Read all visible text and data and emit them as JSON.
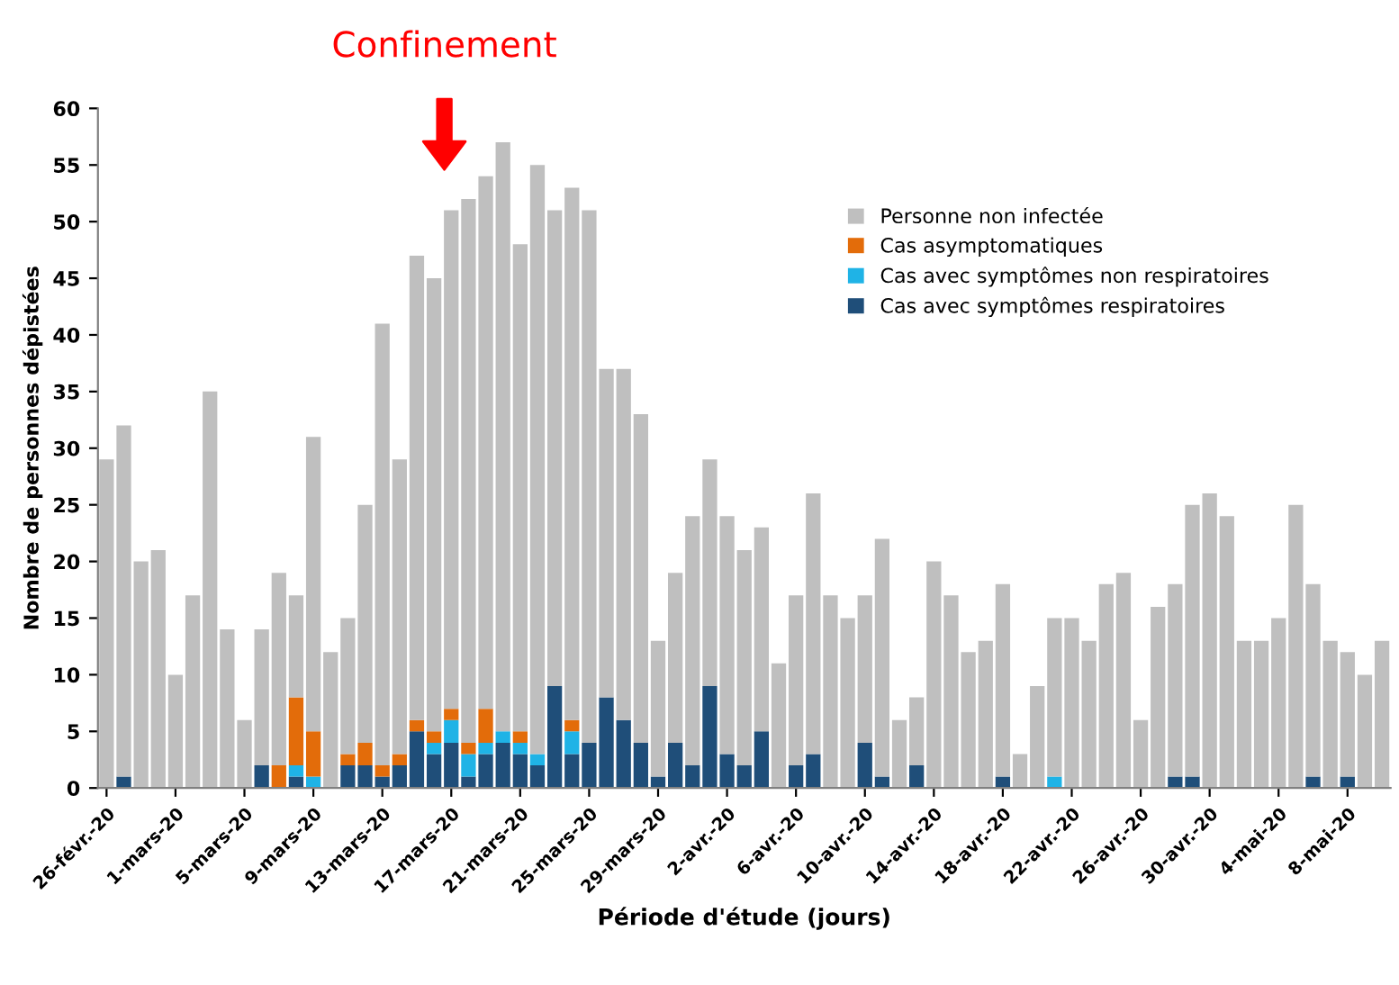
{
  "chart_data": {
    "type": "bar",
    "stacked": true,
    "xlabel": "Période d'étude (jours)",
    "ylabel": "Nombre de personnes dépistées",
    "categories": [
      "26-févr.-20",
      null,
      null,
      null,
      "1-mars-20",
      null,
      null,
      null,
      "5-mars-20",
      null,
      null,
      null,
      "9-mars-20",
      null,
      null,
      null,
      "13-mars-20",
      null,
      null,
      null,
      "17-mars-20",
      null,
      null,
      null,
      "21-mars-20",
      null,
      null,
      null,
      "25-mars-20",
      null,
      null,
      null,
      "29-mars-20",
      null,
      null,
      null,
      "2-avr.-20",
      null,
      null,
      null,
      "6-avr.-20",
      null,
      null,
      null,
      "10-avr.-20",
      null,
      null,
      null,
      "14-avr.-20",
      null,
      null,
      null,
      "18-avr.-20",
      null,
      null,
      null,
      "22-avr.-20",
      null,
      null,
      null,
      "26-avr.-20",
      null,
      null,
      null,
      "30-avr.-20",
      null,
      null,
      null,
      "4-mai-20",
      null,
      null,
      null,
      "8-mai-20",
      null,
      null
    ],
    "series": [
      {
        "name": "Cas avec symptômes respiratoires",
        "color": "#1f4e79",
        "values": [
          0,
          1,
          0,
          0,
          0,
          0,
          0,
          0,
          0,
          2,
          0,
          1,
          0,
          0,
          2,
          2,
          1,
          2,
          5,
          3,
          4,
          1,
          3,
          4,
          3,
          2,
          9,
          3,
          4,
          8,
          6,
          4,
          1,
          4,
          2,
          9,
          3,
          2,
          5,
          0,
          2,
          3,
          0,
          0,
          4,
          1,
          0,
          2,
          0,
          0,
          0,
          0,
          1,
          0,
          0,
          0,
          0,
          0,
          0,
          0,
          0,
          0,
          1,
          1,
          0,
          0,
          0,
          0,
          0,
          0,
          1,
          0,
          1,
          0,
          0
        ]
      },
      {
        "name": "Cas avec symptômes non respiratoires",
        "color": "#1fb3e6",
        "values": [
          0,
          0,
          0,
          0,
          0,
          0,
          0,
          0,
          0,
          0,
          0,
          1,
          1,
          0,
          0,
          0,
          0,
          0,
          0,
          1,
          2,
          2,
          1,
          1,
          1,
          1,
          0,
          2,
          0,
          0,
          0,
          0,
          0,
          0,
          0,
          0,
          0,
          0,
          0,
          0,
          0,
          0,
          0,
          0,
          0,
          0,
          0,
          0,
          0,
          0,
          0,
          0,
          0,
          0,
          0,
          1,
          0,
          0,
          0,
          0,
          0,
          0,
          0,
          0,
          0,
          0,
          0,
          0,
          0,
          0,
          0,
          0,
          0,
          0,
          0
        ]
      },
      {
        "name": "Cas asymptomatiques",
        "color": "#e36c0a",
        "values": [
          0,
          0,
          0,
          0,
          0,
          0,
          0,
          0,
          0,
          0,
          2,
          6,
          4,
          0,
          1,
          2,
          1,
          1,
          1,
          1,
          1,
          1,
          3,
          0,
          1,
          0,
          0,
          1,
          0,
          0,
          0,
          0,
          0,
          0,
          0,
          0,
          0,
          0,
          0,
          0,
          0,
          0,
          0,
          0,
          0,
          0,
          0,
          0,
          0,
          0,
          0,
          0,
          0,
          0,
          0,
          0,
          0,
          0,
          0,
          0,
          0,
          0,
          0,
          0,
          0,
          0,
          0,
          0,
          0,
          0,
          0,
          0,
          0,
          0,
          0
        ]
      },
      {
        "name": "Personne non infectée",
        "color": "#bfbfbf",
        "values": [
          29,
          31,
          20,
          21,
          10,
          17,
          35,
          14,
          6,
          12,
          17,
          9,
          26,
          12,
          12,
          21,
          39,
          26,
          41,
          40,
          44,
          48,
          47,
          52,
          43,
          52,
          42,
          47,
          47,
          29,
          31,
          29,
          12,
          15,
          22,
          20,
          21,
          19,
          18,
          11,
          15,
          23,
          17,
          15,
          13,
          21,
          6,
          6,
          20,
          17,
          12,
          13,
          17,
          3,
          9,
          14,
          15,
          13,
          18,
          19,
          6,
          16,
          17,
          24,
          26,
          24,
          13,
          13,
          15,
          25,
          17,
          13,
          11,
          10,
          13
        ]
      }
    ],
    "ylim": [
      0,
      60
    ],
    "yticks": [
      0,
      5,
      10,
      15,
      20,
      25,
      30,
      35,
      40,
      45,
      50,
      55,
      60
    ],
    "legend": "top right",
    "annotations": [
      "Confinement"
    ]
  }
}
